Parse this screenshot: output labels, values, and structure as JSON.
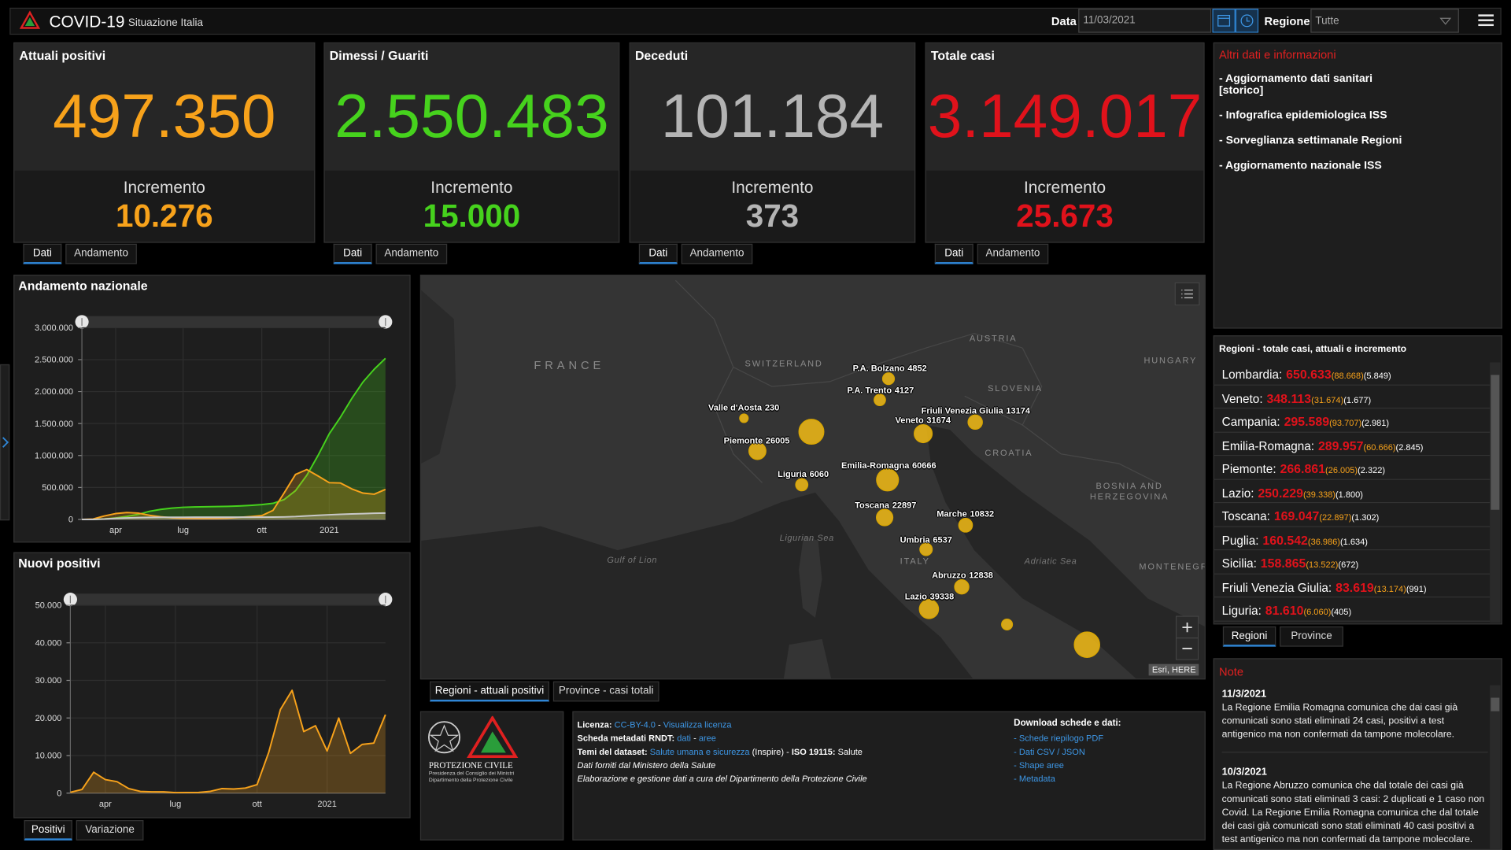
{
  "header": {
    "title": "COVID-19",
    "subtitle": "Situazione Italia",
    "date_label": "Data",
    "date_value": "11/03/2021",
    "region_label": "Regione",
    "region_value": "Tutte"
  },
  "cards": [
    {
      "title": "Attuali positivi",
      "value": "497.350",
      "increment_label": "Incremento",
      "increment": "10.276",
      "color": "#f7a21b",
      "tabs": [
        "Dati",
        "Andamento"
      ]
    },
    {
      "title": "Dimessi / Guariti",
      "value": "2.550.483",
      "increment_label": "Incremento",
      "increment": "15.000",
      "color": "#46d21d",
      "tabs": [
        "Dati",
        "Andamento"
      ]
    },
    {
      "title": "Deceduti",
      "value": "101.184",
      "increment_label": "Incremento",
      "increment": "373",
      "color": "#b4b4b4",
      "tabs": [
        "Dati",
        "Andamento"
      ]
    },
    {
      "title": "Totale casi",
      "value": "3.149.017",
      "increment_label": "Incremento",
      "increment": "25.673",
      "color": "#e0121b",
      "tabs": [
        "Dati",
        "Andamento"
      ]
    }
  ],
  "info": {
    "title": "Altri dati e informazioni",
    "items": [
      "- Aggiornamento dati sanitari\n [storico]",
      "- Infografica epidemiologica ISS",
      "- Sorveglianza settimanale Regioni",
      "- Aggiornamento nazionale ISS"
    ]
  },
  "chart_data": [
    {
      "type": "area",
      "title": "Andamento nazionale",
      "categories": [
        null,
        null,
        null,
        "apr",
        null,
        null,
        null,
        null,
        null,
        "lug",
        null,
        null,
        null,
        null,
        null,
        null,
        "ott",
        null,
        null,
        null,
        null,
        null,
        "2021",
        null,
        null,
        null,
        null,
        null
      ],
      "series": [
        {
          "color": "#46d21d",
          "values": [
            0,
            600,
            8000,
            24000,
            48000,
            79000,
            127000,
            157000,
            177000,
            190000,
            195000,
            199000,
            202000,
            205000,
            211000,
            220000,
            232000,
            252000,
            312000,
            450000,
            690000,
            1000000,
            1340000,
            1600000,
            1890000,
            2150000,
            2350000,
            2520000
          ]
        },
        {
          "color": "#f7a21b",
          "values": [
            0,
            7000,
            55000,
            92000,
            108000,
            99000,
            65000,
            42000,
            26000,
            16000,
            13000,
            12000,
            13000,
            19000,
            33000,
            45000,
            60000,
            142000,
            418000,
            704000,
            780000,
            680000,
            575000,
            570000,
            478000,
            412000,
            395000,
            470000
          ]
        },
        {
          "color": "#c8c8c8",
          "values": [
            7,
            463,
            6077,
            16523,
            24114,
            29079,
            32007,
            33475,
            34371,
            34767,
            34967,
            35123,
            35215,
            35445,
            35553,
            35758,
            36002,
            36616,
            39059,
            45229,
            55576,
            65011,
            73029,
            79819,
            85881,
            91273,
            96666,
            100479
          ]
        }
      ],
      "ylim": [
        0,
        3000000
      ],
      "yticks": [
        0,
        {
          "value": 500000,
          "label": "500.000"
        },
        {
          "value": 1000000,
          "label": "1.000.000"
        },
        {
          "value": 1500000,
          "label": "1.500.000"
        },
        {
          "value": 2000000,
          "label": "2.000.000"
        },
        {
          "value": 2500000,
          "label": "2.500.000"
        },
        {
          "value": 3000000,
          "label": "3.000.000"
        }
      ],
      "grid": true
    },
    {
      "type": "area",
      "title": "Nuovi positivi",
      "categories": [
        null,
        null,
        null,
        "apr",
        null,
        null,
        null,
        null,
        null,
        "lug",
        null,
        null,
        null,
        null,
        null,
        null,
        "ott",
        null,
        null,
        null,
        null,
        null,
        "2021",
        null,
        null,
        null,
        null,
        null
      ],
      "series": [
        {
          "color": "#f7a21b",
          "values": [
            221,
            977,
            5560,
            3599,
            3047,
            1221,
            451,
            355,
            338,
            142,
            169,
            181,
            479,
            1210,
            1108,
            1350,
            2257,
            10874,
            22253,
            27354,
            16377,
            17938,
            11210,
            19978,
            10593,
            12956,
            13314,
            20884
          ]
        }
      ],
      "ylim": [
        0,
        50000
      ],
      "yticks": [
        0,
        {
          "value": 10000,
          "label": "10.000"
        },
        {
          "value": 20000,
          "label": "20.000"
        },
        {
          "value": 30000,
          "label": "30.000"
        },
        {
          "value": 40000,
          "label": "40.000"
        },
        {
          "value": 50000,
          "label": "50.000"
        }
      ],
      "grid": true,
      "tabs": [
        "Positivi",
        "Variazione"
      ]
    }
  ],
  "map": {
    "places": [
      "FRANCE",
      "SWITZERLAND",
      "AUSTRIA",
      "HUNGARY",
      "SLOVENIA",
      "CROATIA",
      "BOSNIA AND HERZEGOVINA",
      "MONTENEGRO",
      "ITALY",
      "Ligurian Sea",
      "Gulf of Lion",
      "Adriatic Sea"
    ],
    "bubble_color": "#e8b417",
    "bubbles": [
      {
        "value": 88668
      },
      {
        "name": "P.A. Bolzano",
        "value": 4852
      },
      {
        "name": "P.A. Trento",
        "value": 4127
      },
      {
        "name": "Valle d'Aosta",
        "value": 230
      },
      {
        "name": "Friuli Venezia Giulia",
        "value": 13174
      },
      {
        "name": "Veneto",
        "value": 31674
      },
      {
        "name": "Piemonte",
        "value": 26005
      },
      {
        "name": "Emilia-Romagna",
        "value": 60666
      },
      {
        "name": "Liguria",
        "value": 6060
      },
      {
        "name": "Toscana",
        "value": 22897
      },
      {
        "name": "Marche",
        "value": 10832
      },
      {
        "name": "Umbria",
        "value": 6537
      },
      {
        "name": "Abruzzo",
        "value": 12838
      },
      {
        "name": "Lazio",
        "value": 39338
      },
      {
        "value": 3000
      },
      {
        "value": 93707
      }
    ],
    "attribution": "Esri, HERE",
    "tabs": [
      "Regioni - attuali positivi",
      "Province - casi totali"
    ]
  },
  "regions": {
    "title": "Regioni - totale casi, attuali e incremento",
    "rows": [
      {
        "name": "Lombardia:",
        "total": "650.633",
        "current": "(88.668)",
        "increment": "(5.849)"
      },
      {
        "name": "Veneto:",
        "total": "348.113",
        "current": "(31.674)",
        "increment": "(1.677)"
      },
      {
        "name": "Campania:",
        "total": "295.589",
        "current": "(93.707)",
        "increment": "(2.981)"
      },
      {
        "name": "Emilia-Romagna:",
        "total": "289.957",
        "current": "(60.666)",
        "increment": "(2.845)"
      },
      {
        "name": "Piemonte:",
        "total": "266.861",
        "current": "(26.005)",
        "increment": "(2.322)"
      },
      {
        "name": "Lazio:",
        "total": "250.229",
        "current": "(39.338)",
        "increment": "(1.800)"
      },
      {
        "name": "Toscana:",
        "total": "169.047",
        "current": "(22.897)",
        "increment": "(1.302)"
      },
      {
        "name": "Puglia:",
        "total": "160.542",
        "current": "(36.986)",
        "increment": "(1.634)"
      },
      {
        "name": "Sicilia:",
        "total": "158.865",
        "current": "(13.522)",
        "increment": "(672)"
      },
      {
        "name": "Friuli Venezia Giulia:",
        "total": "83.619",
        "current": "(13.174)",
        "increment": "(991)"
      },
      {
        "name": "Liguria:",
        "total": "81.610",
        "current": "(6.060)",
        "increment": "(405)"
      }
    ],
    "tabs": [
      "Regioni",
      "Province"
    ]
  },
  "notes": {
    "title": "Note",
    "entries": [
      {
        "date": "11/3/2021",
        "text": "La Regione Emilia Romagna comunica che dai casi già comunicati sono stati eliminati 24 casi, positivi a test antigenico ma non confermati da tampone molecolare."
      },
      {
        "date": "10/3/2021",
        "text": "La Regione Abruzzo comunica che dal totale dei casi già comunicati sono stati eliminati 3 casi: 2 duplicati e 1 caso non Covid. La Regione Emilia Romagna comunica che dal totale dei casi già comunicati sono stati eliminati 40 casi positivi a test antigenico ma non confermati da tampone molecolare."
      }
    ]
  },
  "footer": {
    "logo": {
      "name": "PROTEZIONE CIVILE",
      "line1": "Presidenza del Consiglio dei Ministri",
      "line2": "Dipartimento della Protezione Civile"
    },
    "license": [
      [
        {
          "text": "Licenza: ",
          "style": "bold"
        },
        {
          "text": "CC-BY-4.0",
          "style": "link"
        },
        {
          "text": " - "
        },
        {
          "text": "Visualizza licenza",
          "style": "link"
        }
      ],
      [
        {
          "text": "Scheda metadati RNDT: ",
          "style": "bold"
        },
        {
          "text": "dati",
          "style": "link"
        },
        {
          "text": " - "
        },
        {
          "text": "aree",
          "style": "link"
        }
      ],
      [
        {
          "text": "Temi del dataset: ",
          "style": "bold"
        },
        {
          "text": "Salute umana e sicurezza",
          "style": "link"
        },
        {
          "text": " (Inspire) - "
        },
        {
          "text": "ISO 19115:",
          "style": "bold"
        },
        {
          "text": " Salute"
        }
      ],
      [
        {
          "text": "Dati forniti dal Ministero della Salute",
          "style": "italic"
        }
      ],
      [
        {
          "text": "Elaborazione e gestione dati a cura del Dipartimento della Protezione Civile",
          "style": "italic"
        }
      ]
    ],
    "download_title": "Download schede e dati:",
    "downloads": [
      "- Schede riepilogo PDF",
      "- Dati CSV / JSON",
      "- Shape aree",
      "- Metadata"
    ]
  }
}
